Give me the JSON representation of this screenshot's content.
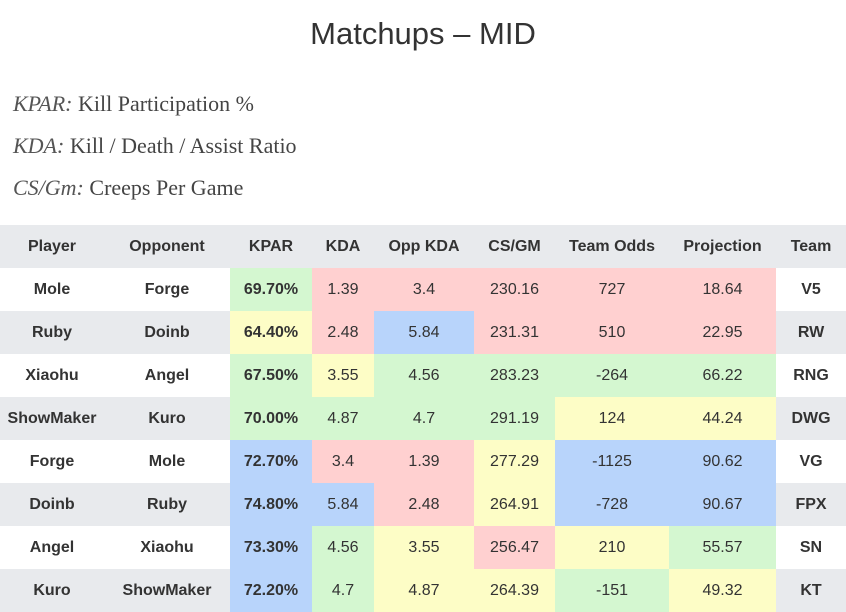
{
  "title": "Matchups – MID",
  "legend": [
    {
      "abbr": "KPAR:",
      "text": " Kill Participation %"
    },
    {
      "abbr": "KDA:",
      "text": " Kill / Death / Assist Ratio"
    },
    {
      "abbr": "CS/Gm:",
      "text": " Creeps Per Game"
    }
  ],
  "table": {
    "headers": [
      "Player",
      "Opponent",
      "KPAR",
      "KDA",
      "Opp KDA",
      "CS/GM",
      "Team Odds",
      "Projection",
      "Team"
    ],
    "rows": [
      [
        "Mole",
        "Forge",
        "69.70%",
        "1.39",
        "3.4",
        "230.16",
        "727",
        "18.64",
        "V5"
      ],
      [
        "Ruby",
        "Doinb",
        "64.40%",
        "2.48",
        "5.84",
        "231.31",
        "510",
        "22.95",
        "RW"
      ],
      [
        "Xiaohu",
        "Angel",
        "67.50%",
        "3.55",
        "4.56",
        "283.23",
        "-264",
        "66.22",
        "RNG"
      ],
      [
        "ShowMaker",
        "Kuro",
        "70.00%",
        "4.87",
        "4.7",
        "291.19",
        "124",
        "44.24",
        "DWG"
      ],
      [
        "Forge",
        "Mole",
        "72.70%",
        "3.4",
        "1.39",
        "277.29",
        "-1125",
        "90.62",
        "VG"
      ],
      [
        "Doinb",
        "Ruby",
        "74.80%",
        "5.84",
        "2.48",
        "264.91",
        "-728",
        "90.67",
        "FPX"
      ],
      [
        "Angel",
        "Xiaohu",
        "73.30%",
        "4.56",
        "3.55",
        "256.47",
        "210",
        "55.57",
        "SN"
      ],
      [
        "Kuro",
        "ShowMaker",
        "72.20%",
        "4.7",
        "4.87",
        "264.39",
        "-151",
        "49.32",
        "KT"
      ]
    ],
    "cell_colors": [
      [
        null,
        null,
        "green",
        "red",
        "red",
        "red",
        "red",
        "red",
        null
      ],
      [
        null,
        null,
        "yellow",
        "red",
        "blue",
        "red",
        "red",
        "red",
        null
      ],
      [
        null,
        null,
        "green",
        "yellow",
        "green",
        "green",
        "green",
        "green",
        null
      ],
      [
        null,
        null,
        "green",
        "green",
        "green",
        "green",
        "yellow",
        "yellow",
        null
      ],
      [
        null,
        null,
        "blue",
        "red",
        "red",
        "yellow",
        "blue",
        "blue",
        null
      ],
      [
        null,
        null,
        "blue",
        "blue",
        "red",
        "yellow",
        "blue",
        "blue",
        null
      ],
      [
        null,
        null,
        "blue",
        "green",
        "yellow",
        "red",
        "yellow",
        "green",
        null
      ],
      [
        null,
        null,
        "blue",
        "green",
        "yellow",
        "yellow",
        "green",
        "yellow",
        null
      ]
    ]
  },
  "colors": {
    "green": "#d4f7d0",
    "red": "#ffd0d0",
    "yellow": "#fdfdc6",
    "blue": "#b8d4fb",
    "stripe": "#e8eaed"
  }
}
